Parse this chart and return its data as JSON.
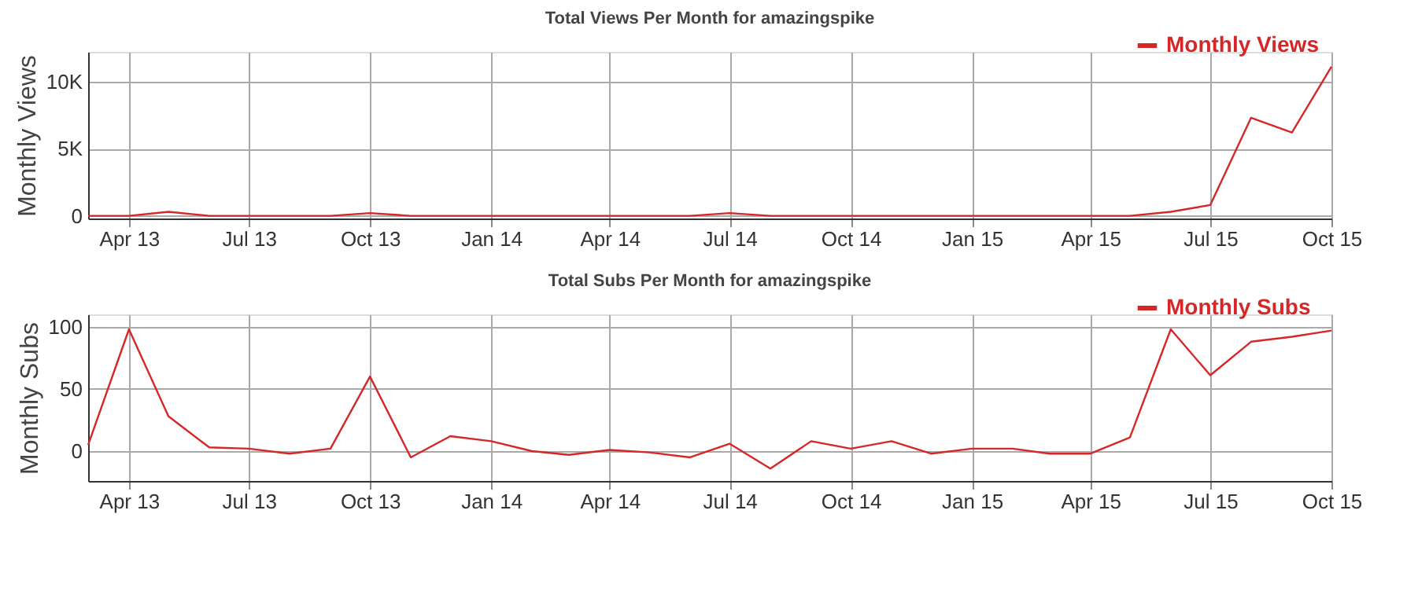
{
  "chart_data": [
    {
      "type": "line",
      "title": "Total Views Per Month for amazingspike",
      "ylabel": "Monthly Views",
      "x": [
        "2013-03",
        "2013-04",
        "2013-05",
        "2013-06",
        "2013-07",
        "2013-08",
        "2013-09",
        "2013-10",
        "2013-11",
        "2013-12",
        "2014-01",
        "2014-02",
        "2014-03",
        "2014-04",
        "2014-05",
        "2014-06",
        "2014-07",
        "2014-08",
        "2014-09",
        "2014-10",
        "2014-11",
        "2014-12",
        "2015-01",
        "2015-02",
        "2015-03",
        "2015-04",
        "2015-05",
        "2015-06",
        "2015-07",
        "2015-08",
        "2015-09",
        "2015-10"
      ],
      "series": [
        {
          "name": "Monthly Views",
          "color": "#d62728",
          "values": [
            0,
            0,
            300,
            0,
            0,
            0,
            0,
            200,
            0,
            0,
            0,
            0,
            0,
            0,
            0,
            0,
            200,
            0,
            0,
            0,
            0,
            0,
            0,
            0,
            0,
            0,
            0,
            300,
            800,
            7300,
            6200,
            11100
          ]
        }
      ],
      "xlim": [
        "2013-03",
        "2015-10"
      ],
      "xticks": [
        {
          "value": "2013-04",
          "label": "Apr 13"
        },
        {
          "value": "2013-07",
          "label": "Jul 13"
        },
        {
          "value": "2013-10",
          "label": "Oct 13"
        },
        {
          "value": "2014-01",
          "label": "Jan 14"
        },
        {
          "value": "2014-04",
          "label": "Apr 14"
        },
        {
          "value": "2014-07",
          "label": "Jul 14"
        },
        {
          "value": "2014-10",
          "label": "Oct 14"
        },
        {
          "value": "2015-01",
          "label": "Jan 15"
        },
        {
          "value": "2015-04",
          "label": "Apr 15"
        },
        {
          "value": "2015-07",
          "label": "Jul 15"
        },
        {
          "value": "2015-10",
          "label": "Oct 15"
        }
      ],
      "ylim": [
        -200,
        12200
      ],
      "yticks": [
        0,
        {
          "value": 5000,
          "label": "5K"
        },
        {
          "value": 10000,
          "label": "10K"
        }
      ],
      "grid": true,
      "legend": "top right",
      "marker": "none",
      "line_style": "solid"
    },
    {
      "type": "line",
      "title": "Total Subs Per Month for amazingspike",
      "ylabel": "Monthly Subs",
      "x": [
        "2013-03",
        "2013-04",
        "2013-05",
        "2013-06",
        "2013-07",
        "2013-08",
        "2013-09",
        "2013-10",
        "2013-11",
        "2013-12",
        "2014-01",
        "2014-02",
        "2014-03",
        "2014-04",
        "2014-05",
        "2014-06",
        "2014-07",
        "2014-08",
        "2014-09",
        "2014-10",
        "2014-11",
        "2014-12",
        "2015-01",
        "2015-02",
        "2015-03",
        "2015-04",
        "2015-05",
        "2015-06",
        "2015-07",
        "2015-08",
        "2015-09",
        "2015-10"
      ],
      "series": [
        {
          "name": "Monthly Subs",
          "color": "#d62728",
          "values": [
            5,
            98,
            28,
            3,
            2,
            -2,
            2,
            60,
            -5,
            12,
            8,
            0,
            -3,
            1,
            -1,
            -5,
            6,
            -14,
            8,
            2,
            8,
            -2,
            2,
            2,
            -2,
            -2,
            11,
            98,
            61,
            88,
            92,
            97
          ]
        }
      ],
      "xlim": [
        "2013-03",
        "2015-10"
      ],
      "xticks": [
        {
          "value": "2013-04",
          "label": "Apr 13"
        },
        {
          "value": "2013-07",
          "label": "Jul 13"
        },
        {
          "value": "2013-10",
          "label": "Oct 13"
        },
        {
          "value": "2014-01",
          "label": "Jan 14"
        },
        {
          "value": "2014-04",
          "label": "Apr 14"
        },
        {
          "value": "2014-07",
          "label": "Jul 14"
        },
        {
          "value": "2014-10",
          "label": "Oct 14"
        },
        {
          "value": "2015-01",
          "label": "Jan 15"
        },
        {
          "value": "2015-04",
          "label": "Apr 15"
        },
        {
          "value": "2015-07",
          "label": "Jul 15"
        },
        {
          "value": "2015-10",
          "label": "Oct 15"
        }
      ],
      "ylim": [
        -24,
        110
      ],
      "yticks": [
        0,
        50,
        100
      ],
      "grid": true,
      "legend": "top right",
      "marker": "none",
      "line_style": "solid"
    }
  ]
}
